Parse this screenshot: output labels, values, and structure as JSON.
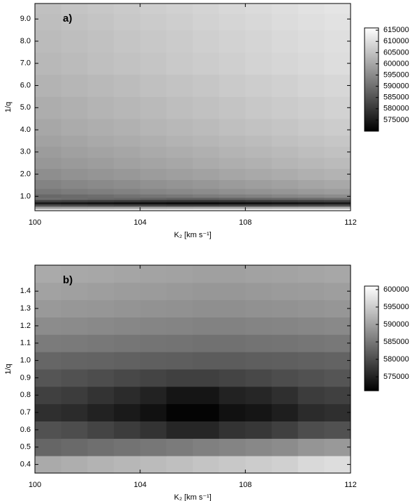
{
  "chart_data": [
    {
      "type": "heatmap",
      "label": "a)",
      "xlabel": "K₂ [km s⁻¹]",
      "ylabel": "1/q",
      "colormap": [
        "#000000",
        "#ffffff"
      ],
      "x": [
        100.5,
        101.5,
        102.5,
        103.5,
        104.5,
        105.5,
        106.5,
        107.5,
        108.5,
        109.5,
        110.5,
        111.5
      ],
      "y": [
        0.4,
        0.5,
        0.6,
        0.7,
        0.8,
        0.9,
        1.0,
        1.2,
        1.5,
        2.0,
        2.5,
        3.0,
        3.5,
        4.0,
        5.0,
        6.0,
        7.0,
        8.0,
        9.0,
        9.5
      ],
      "z": [
        [
          610350,
          610650,
          610950,
          611250,
          611550,
          611850,
          612150,
          612450,
          612750,
          613050,
          613350,
          613650
        ],
        [
          598350,
          598650,
          598950,
          599250,
          599550,
          599850,
          600150,
          600450,
          600750,
          601050,
          601350,
          601650
        ],
        [
          584000,
          583500,
          583000,
          582500,
          582000,
          581500,
          581500,
          582000,
          582500,
          583000,
          583500,
          584000
        ],
        [
          575000,
          574500,
          574000,
          573500,
          573000,
          572500,
          572500,
          573000,
          573500,
          574000,
          574500,
          575000
        ],
        [
          582000,
          581500,
          581000,
          580500,
          580000,
          579500,
          579500,
          580000,
          580500,
          581000,
          581500,
          582000
        ],
        [
          590000,
          589500,
          589000,
          588500,
          588000,
          587500,
          587500,
          588000,
          588500,
          589000,
          589500,
          590000
        ],
        [
          588700,
          589300,
          589900,
          590500,
          591100,
          591700,
          592300,
          592900,
          593500,
          594100,
          594700,
          595300
        ],
        [
          591700,
          592300,
          592900,
          593500,
          594100,
          594700,
          595300,
          595900,
          596500,
          597100,
          597700,
          598300
        ],
        [
          593700,
          594300,
          594900,
          595500,
          596100,
          596700,
          597300,
          597900,
          598500,
          599100,
          599700,
          600300
        ],
        [
          595700,
          596300,
          596900,
          597500,
          598100,
          598700,
          599300,
          599900,
          600500,
          601100,
          601700,
          602300
        ],
        [
          597200,
          597800,
          598400,
          599000,
          599600,
          600200,
          600800,
          601400,
          602000,
          602600,
          603200,
          603800
        ],
        [
          598200,
          598800,
          599400,
          600000,
          600600,
          601200,
          601800,
          602400,
          603000,
          603600,
          604200,
          604800
        ],
        [
          599200,
          599800,
          600400,
          601000,
          601600,
          602200,
          602800,
          603400,
          604000,
          604600,
          605200,
          605800
        ],
        [
          600200,
          600800,
          601400,
          602000,
          602600,
          603200,
          603800,
          604400,
          605000,
          605600,
          606200,
          606800
        ],
        [
          601200,
          601800,
          602400,
          603000,
          603600,
          604200,
          604800,
          605400,
          606000,
          606600,
          607200,
          607800
        ],
        [
          602200,
          602800,
          603400,
          604000,
          604600,
          605200,
          605800,
          606400,
          607000,
          607600,
          608200,
          608800
        ],
        [
          603200,
          603800,
          604400,
          605000,
          605600,
          606200,
          606800,
          607400,
          608000,
          608600,
          609200,
          609800
        ],
        [
          603700,
          604300,
          604900,
          605500,
          606100,
          606700,
          607300,
          607900,
          608500,
          609100,
          609700,
          610300
        ],
        [
          604200,
          604800,
          605400,
          606000,
          606600,
          607200,
          607800,
          608400,
          609000,
          609600,
          610200,
          610800
        ],
        [
          604700,
          605300,
          605900,
          606500,
          607100,
          607700,
          608300,
          608900,
          609500,
          610100,
          610700,
          611300
        ]
      ],
      "xlim": [
        100,
        112
      ],
      "xticks": [
        100,
        104,
        108,
        112
      ],
      "ylim": [
        0.35,
        9.7
      ],
      "yticks": [
        {
          "value": 1,
          "label": "1.0"
        },
        {
          "value": 2,
          "label": "2.0"
        },
        {
          "value": 3,
          "label": "3.0"
        },
        {
          "value": 4,
          "label": "4.0"
        },
        {
          "value": 5,
          "label": "5.0"
        },
        {
          "value": 6,
          "label": "6.0"
        },
        {
          "value": 7,
          "label": "7.0"
        },
        {
          "value": 8,
          "label": "8.0"
        },
        {
          "value": 9,
          "label": "9.0"
        }
      ],
      "clim": [
        570000,
        616000
      ],
      "cticks": [
        575000,
        580000,
        585000,
        590000,
        595000,
        600000,
        605000,
        610000,
        615000
      ]
    },
    {
      "type": "heatmap",
      "label": "b)",
      "xlabel": "K₂ [km s⁻¹]",
      "ylabel": "1/q",
      "colormap": [
        "#000000",
        "#ffffff"
      ],
      "x": [
        100.5,
        101.5,
        102.5,
        103.5,
        104.5,
        105.5,
        106.5,
        107.5,
        108.5,
        109.5,
        110.5,
        111.5
      ],
      "y": [
        0.4,
        0.5,
        0.6,
        0.7,
        0.8,
        0.9,
        1.0,
        1.1,
        1.2,
        1.3,
        1.4,
        1.5
      ],
      "z": [
        [
          591000,
          591500,
          592000,
          592500,
          593000,
          593500,
          594000,
          594500,
          595000,
          595500,
          596500,
          597000
        ],
        [
          583000,
          583500,
          584000,
          584500,
          585000,
          585500,
          586000,
          586500,
          587000,
          587500,
          588500,
          589000
        ],
        [
          580500,
          580000,
          579000,
          578000,
          577000,
          575500,
          575500,
          577000,
          577500,
          578500,
          580000,
          580500
        ],
        [
          576500,
          576000,
          575000,
          574000,
          573000,
          571500,
          571500,
          573000,
          573500,
          574500,
          576000,
          576500
        ],
        [
          578500,
          578000,
          577000,
          576000,
          575000,
          573500,
          573500,
          575000,
          575500,
          576500,
          578000,
          578500
        ],
        [
          581000,
          580500,
          580000,
          579500,
          579000,
          578500,
          578500,
          579000,
          579500,
          580000,
          580500,
          581000
        ],
        [
          583000,
          582800,
          582600,
          582400,
          582200,
          582000,
          581800,
          581800,
          582000,
          582200,
          582400,
          582600
        ],
        [
          585500,
          585300,
          585100,
          584900,
          584700,
          584500,
          584300,
          584300,
          584500,
          584700,
          584900,
          585100
        ],
        [
          587500,
          587300,
          587100,
          586900,
          586700,
          586500,
          586300,
          586300,
          586500,
          586700,
          586900,
          587100
        ],
        [
          589000,
          588800,
          588600,
          588400,
          588200,
          588000,
          587800,
          587800,
          588000,
          588200,
          588400,
          588600
        ],
        [
          590000,
          589800,
          589600,
          589400,
          589200,
          589000,
          588800,
          588800,
          589000,
          589200,
          589400,
          589600
        ],
        [
          591000,
          590800,
          590600,
          590400,
          590200,
          590000,
          589800,
          589800,
          590000,
          590200,
          590400,
          590600
        ]
      ],
      "xlim": [
        100,
        112
      ],
      "xticks": [
        100,
        104,
        108,
        112
      ],
      "ylim": [
        0.35,
        1.55
      ],
      "yticks": [
        0.4,
        0.5,
        0.6,
        0.7,
        0.8,
        0.9,
        {
          "value": 1,
          "label": "1.0"
        },
        1.1,
        1.2,
        1.3,
        1.4
      ],
      "clim": [
        571000,
        601000
      ],
      "cticks": [
        575000,
        580000,
        585000,
        590000,
        595000,
        600000
      ]
    }
  ]
}
